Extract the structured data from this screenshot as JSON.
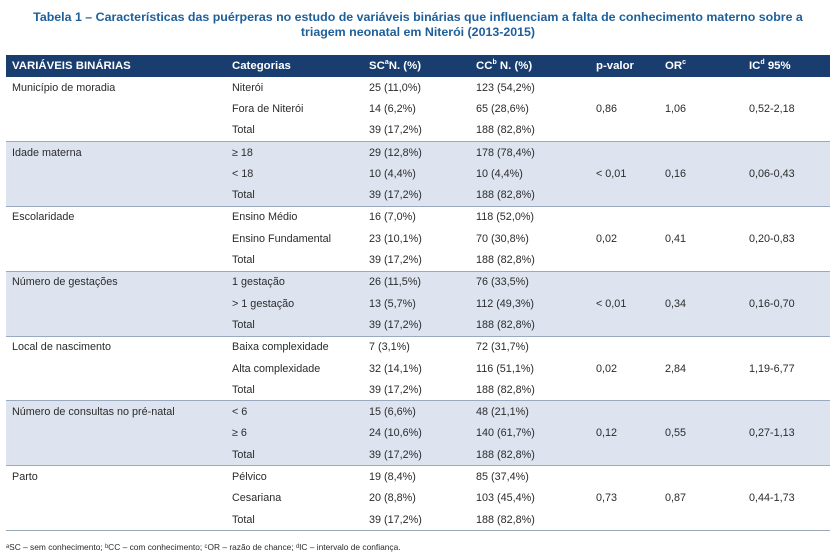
{
  "caption": {
    "line1": "Tabela 1 – Características das puérperas no estudo de variáveis binárias que influenciam a falta de conhecimento materno sobre a",
    "line2": "triagem neonatal em Niterói (2013-2015)"
  },
  "header": {
    "col0": "VARIÁVEIS BINÁRIAS",
    "col1": "Categorias",
    "col2_pre": "SC",
    "col2_sup": "a",
    "col2_post": "N. (%)",
    "col3_pre": "CC",
    "col3_sup": "b",
    "col3_post": " N. (%)",
    "col4": "p-valor",
    "col5_pre": "OR",
    "col5_sup": "c",
    "col6_pre": "IC",
    "col6_sup": "d",
    "col6_post": " 95%"
  },
  "groups": [
    {
      "variable": "Município de moradia",
      "rows": [
        {
          "cat": "Niterói",
          "sc": "25 (11,0%)",
          "cc": "123 (54,2%)"
        },
        {
          "cat": "Fora de Niterói",
          "sc": "14 (6,2%)",
          "cc": "65 (28,6%)"
        },
        {
          "cat": "Total",
          "sc": "39 (17,2%)",
          "cc": "188 (82,8%)"
        }
      ],
      "p": "0,86",
      "or": "1,06",
      "ic": "0,52-2,18"
    },
    {
      "variable": "Idade materna",
      "rows": [
        {
          "cat": "≥ 18",
          "sc": "29 (12,8%)",
          "cc": "178 (78,4%)"
        },
        {
          "cat": "< 18",
          "sc": "10 (4,4%)",
          "cc": "10 (4,4%)"
        },
        {
          "cat": "Total",
          "sc": "39 (17,2%)",
          "cc": "188 (82,8%)"
        }
      ],
      "p": "< 0,01",
      "or": "0,16",
      "ic": "0,06-0,43"
    },
    {
      "variable": "Escolaridade",
      "rows": [
        {
          "cat": "Ensino Médio",
          "sc": "16 (7,0%)",
          "cc": "118 (52,0%)"
        },
        {
          "cat": "Ensino Fundamental",
          "sc": "23 (10,1%)",
          "cc": "70 (30,8%)"
        },
        {
          "cat": "Total",
          "sc": "39 (17,2%)",
          "cc": "188 (82,8%)"
        }
      ],
      "p": "0,02",
      "or": "0,41",
      "ic": "0,20-0,83"
    },
    {
      "variable": "Número de gestações",
      "rows": [
        {
          "cat": "1 gestação",
          "sc": "26 (11,5%)",
          "cc": "76 (33,5%)"
        },
        {
          "cat": "> 1 gestação",
          "sc": "13 (5,7%)",
          "cc": "112 (49,3%)"
        },
        {
          "cat": "Total",
          "sc": "39 (17,2%)",
          "cc": "188 (82,8%)"
        }
      ],
      "p": "< 0,01",
      "or": "0,34",
      "ic": "0,16-0,70"
    },
    {
      "variable": "Local de nascimento",
      "rows": [
        {
          "cat": "Baixa complexidade",
          "sc": "7 (3,1%)",
          "cc": "72 (31,7%)"
        },
        {
          "cat": "Alta complexidade",
          "sc": "32 (14,1%)",
          "cc": "116 (51,1%)"
        },
        {
          "cat": "Total",
          "sc": "39 (17,2%)",
          "cc": "188 (82,8%)"
        }
      ],
      "p": "0,02",
      "or": "2,84",
      "ic": "1,19-6,77"
    },
    {
      "variable": "Número de consultas no pré-natal",
      "rows": [
        {
          "cat": "< 6",
          "sc": "15 (6,6%)",
          "cc": "48 (21,1%)"
        },
        {
          "cat": "≥ 6",
          "sc": "24 (10,6%)",
          "cc": "140 (61,7%)"
        },
        {
          "cat": "Total",
          "sc": "39 (17,2%)",
          "cc": "188 (82,8%)"
        }
      ],
      "p": "0,12",
      "or": "0,55",
      "ic": "0,27-1,13"
    },
    {
      "variable": "Parto",
      "rows": [
        {
          "cat": "Pélvico",
          "sc": "19 (8,4%)",
          "cc": "85 (37,4%)"
        },
        {
          "cat": "Cesariana",
          "sc": "20 (8,8%)",
          "cc": "103 (45,4%)"
        },
        {
          "cat": "Total",
          "sc": "39 (17,2%)",
          "cc": "188 (82,8%)"
        }
      ],
      "p": "0,73",
      "or": "0,87",
      "ic": "0,44-1,73"
    }
  ],
  "footnote": "ᵃSC – sem conhecimento; ᵇCC – com conhecimento; ᶜOR – razão de chance; ᵈIC – intervalo de confiança.",
  "colors": {
    "header_bg": "#183d6e",
    "caption": "#1e5f9a",
    "shade": "#dde4ef"
  }
}
